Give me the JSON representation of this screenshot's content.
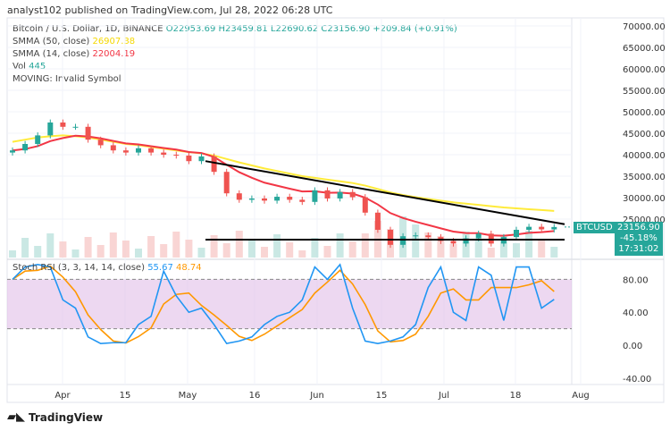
{
  "header": {
    "published": "analyst102 published on TradingView.com, Jul 28, 2022 06:28 UTC"
  },
  "legend": {
    "symbol": "Bitcoin / U.S. Dollar, 1D, BINANCE",
    "open": "O22953.69",
    "high": "H23459.81",
    "low": "L22690.62",
    "close": "C23156.90",
    "change": "+209.84 (+0.91%)",
    "smma50_label": "SMMA (50, close)",
    "smma50_value": "26907.38",
    "smma14_label": "SMMA (14, close)",
    "smma14_value": "22004.19",
    "vol_label": "Vol",
    "vol_value": "445",
    "moving": "MOVING: Invalid Symbol"
  },
  "stoch": {
    "label": "Stoch RSI (3, 3, 14, 14, close)",
    "k": "55.67",
    "d": "48.74"
  },
  "price_tag": {
    "symbol": "BTCUSD",
    "price": "23156.90",
    "change": "-45.18%",
    "countdown": "17:31:02"
  },
  "colors": {
    "up": "#26a69a",
    "down": "#ef5350",
    "smma50": "#ffeb3b",
    "smma14": "#f23645",
    "k": "#2196f3",
    "d": "#ff9800",
    "rsi_band": "#e1bee7"
  },
  "price_axis": [
    "70000.00",
    "65000.00",
    "60000.00",
    "55000.00",
    "50000.00",
    "45000.00",
    "40000.00",
    "35000.00",
    "30000.00",
    "25000.00"
  ],
  "rsi_axis": [
    "80.00",
    "40.00",
    "0.00",
    "-40.00"
  ],
  "time_axis": [
    "Apr",
    "15",
    "May",
    "16",
    "Jun",
    "15",
    "Jul",
    "18",
    "Aug"
  ],
  "footer": {
    "brand": "TradingView"
  },
  "chart_data": {
    "type": "candlestick",
    "interval_days": 3,
    "start": "2022-03-20",
    "close": [
      41000,
      42500,
      44500,
      47500,
      46500,
      46500,
      43500,
      42200,
      41000,
      40500,
      41500,
      40500,
      40000,
      39800,
      38500,
      39600,
      36000,
      31000,
      29500,
      29800,
      29300,
      30200,
      29500,
      29000,
      31700,
      29800,
      31300,
      30100,
      26500,
      22500,
      19000,
      21000,
      21200,
      20800,
      19900,
      19300,
      20500,
      21600,
      19300,
      20800,
      22500,
      23200,
      22600,
      23157
    ],
    "smma50": [
      43000,
      43500,
      44000,
      44300,
      44500,
      44300,
      44000,
      43500,
      43000,
      42500,
      42200,
      41800,
      41400,
      41000,
      40600,
      40300,
      39800,
      39000,
      38200,
      37500,
      36800,
      36200,
      35600,
      35000,
      34600,
      34200,
      33800,
      33400,
      32800,
      32000,
      31200,
      30600,
      30100,
      29700,
      29300,
      28900,
      28600,
      28300,
      28000,
      27700,
      27500,
      27300,
      27100,
      26907
    ],
    "stoch_k": [
      80,
      95,
      98,
      95,
      55,
      45,
      10,
      2,
      3,
      3,
      25,
      35,
      90,
      60,
      40,
      45,
      25,
      2,
      5,
      10,
      25,
      35,
      40,
      55,
      95,
      80,
      98,
      45,
      5,
      2,
      5,
      10,
      25,
      70,
      95,
      40,
      30,
      95,
      85,
      30,
      95,
      95,
      45,
      55.67
    ]
  }
}
